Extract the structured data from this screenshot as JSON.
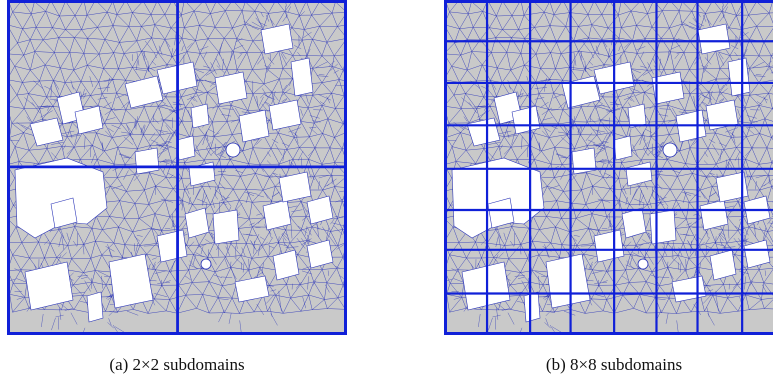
{
  "figure": {
    "mesh_colors": {
      "background": "#c9c9c9",
      "mesh_line": "#2b35b8",
      "subdomain_border": "#1020d8",
      "obstacle_fill": "#ffffff"
    },
    "panels": [
      {
        "id": "a",
        "caption": "(a) 2×2 subdomains",
        "grid_divisions": 2
      },
      {
        "id": "b",
        "caption": "(b) 8×8 subdomains",
        "grid_divisions": 8
      }
    ]
  }
}
